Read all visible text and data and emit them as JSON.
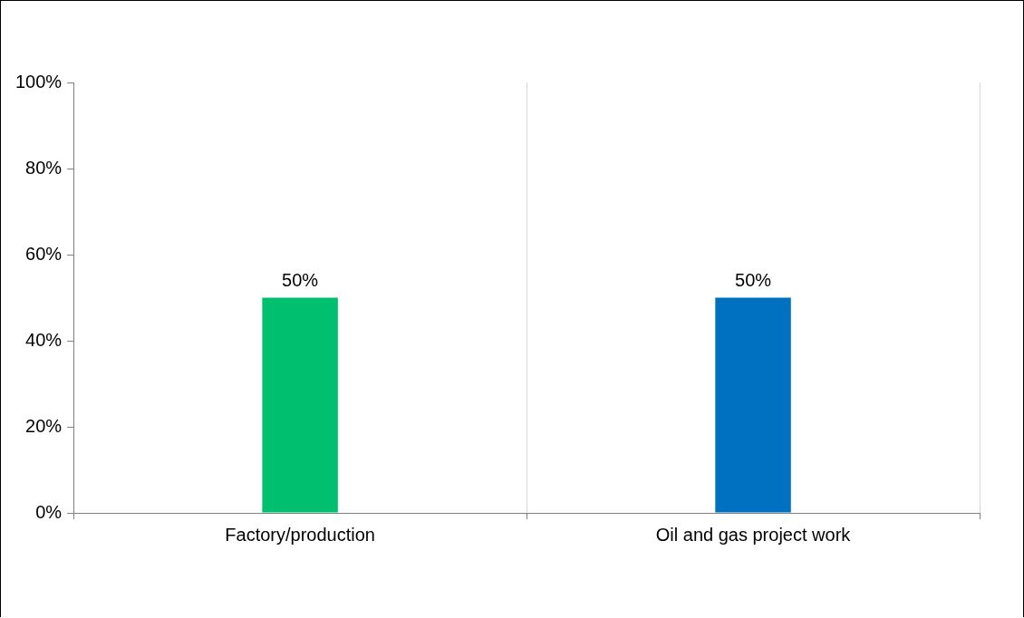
{
  "chart_data": {
    "type": "bar",
    "categories": [
      "Factory/production",
      "Oil and gas project work"
    ],
    "values": [
      50,
      50
    ],
    "colors": [
      "#00bf6f",
      "#0070c0"
    ],
    "ylim": [
      0,
      100
    ],
    "yticks": [
      {
        "value": 0,
        "label": "0%"
      },
      {
        "value": 20,
        "label": "20%"
      },
      {
        "value": 40,
        "label": "40%"
      },
      {
        "value": 60,
        "label": "60%"
      },
      {
        "value": 80,
        "label": "80%"
      },
      {
        "value": 100,
        "label": "100%"
      }
    ],
    "value_labels": [
      "50%",
      "50%"
    ],
    "grid": "x",
    "legend": false
  }
}
